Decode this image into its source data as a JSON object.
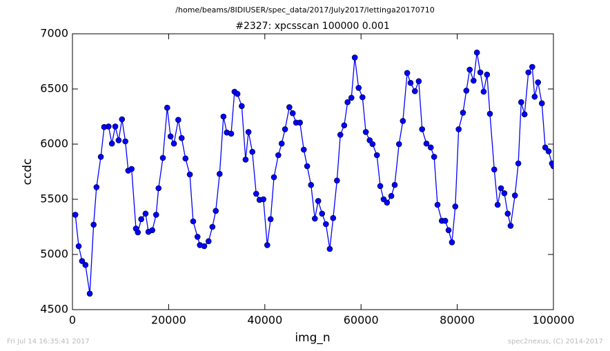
{
  "chart_data": {
    "type": "line",
    "suptitle": "/home/beams/8IDIUSER/spec_data/2017/July2017/lettinga20170710",
    "title": "#2327: xpcsscan 100000 0.001",
    "x_label": "img_n",
    "y_label": "ccdc",
    "annotations": [
      "Fri Jul 14 16:35:41 2017",
      "spec2nexus, (C) 2014-2017"
    ],
    "xlim": [
      0,
      100000
    ],
    "ylim": [
      4500,
      7000
    ],
    "xticks": [
      0,
      20000,
      40000,
      60000,
      80000,
      100000
    ],
    "yticks": [
      4500,
      5000,
      5500,
      6000,
      6500,
      7000
    ],
    "x": [
      600,
      1300,
      2000,
      2700,
      3600,
      4400,
      5000,
      5900,
      6600,
      7500,
      8200,
      8900,
      9600,
      10300,
      11000,
      11600,
      12300,
      13200,
      13600,
      14300,
      15200,
      15800,
      16600,
      17400,
      17900,
      18800,
      19700,
      20400,
      21100,
      22000,
      22700,
      23500,
      24400,
      25100,
      26000,
      26500,
      27400,
      28300,
      29100,
      29800,
      30600,
      31400,
      32100,
      33000,
      33700,
      34300,
      35200,
      36000,
      36600,
      37400,
      38200,
      38900,
      39700,
      40500,
      41200,
      41900,
      42800,
      43500,
      44200,
      45100,
      45800,
      46500,
      47300,
      48100,
      48800,
      49600,
      50400,
      51100,
      51900,
      52700,
      53500,
      54200,
      55000,
      55700,
      56500,
      57200,
      58000,
      58700,
      59500,
      60300,
      61000,
      61800,
      62400,
      63300,
      64000,
      64700,
      65400,
      66300,
      67000,
      67900,
      68700,
      69600,
      70300,
      71200,
      72000,
      72700,
      73600,
      74500,
      75200,
      75900,
      76800,
      77500,
      78200,
      78900,
      79600,
      80300,
      81200,
      81900,
      82600,
      83400,
      84100,
      84800,
      85500,
      86200,
      86800,
      87700,
      88400,
      89100,
      89800,
      90500,
      91100,
      92000,
      92700,
      93300,
      94000,
      94800,
      95600,
      96100,
      96800,
      97600,
      98300,
      99000,
      99700,
      100000
    ],
    "series": [
      {
        "name": "ccdc",
        "color": "#0000ff",
        "values": [
          5360,
          5075,
          4940,
          4905,
          4645,
          5270,
          5610,
          5885,
          6155,
          6160,
          6005,
          6160,
          6035,
          6225,
          6025,
          5760,
          5775,
          5235,
          5200,
          5320,
          5370,
          5205,
          5220,
          5360,
          5600,
          5875,
          6330,
          6070,
          6005,
          6220,
          6055,
          5870,
          5725,
          5300,
          5160,
          5085,
          5075,
          5120,
          5250,
          5395,
          5730,
          6250,
          6105,
          6095,
          6475,
          6455,
          6345,
          5860,
          6110,
          5930,
          5550,
          5495,
          5500,
          5085,
          5320,
          5700,
          5900,
          6005,
          6135,
          6335,
          6280,
          6195,
          6195,
          5950,
          5800,
          5630,
          5325,
          5485,
          5370,
          5275,
          5050,
          5330,
          5670,
          6085,
          6170,
          6380,
          6420,
          6785,
          6510,
          6425,
          6110,
          6035,
          6000,
          5900,
          5620,
          5500,
          5470,
          5530,
          5630,
          6000,
          6210,
          6645,
          6555,
          6480,
          6570,
          6135,
          6005,
          5970,
          5885,
          5450,
          5305,
          5305,
          5220,
          5110,
          5435,
          6135,
          6285,
          6485,
          6675,
          6575,
          6830,
          6650,
          6475,
          6630,
          6275,
          5770,
          5450,
          5600,
          5555,
          5370,
          5260,
          5535,
          5825,
          6380,
          6270,
          6650,
          6700,
          6430,
          6560,
          6370,
          5970,
          5935,
          5825,
          5800
        ]
      }
    ]
  }
}
